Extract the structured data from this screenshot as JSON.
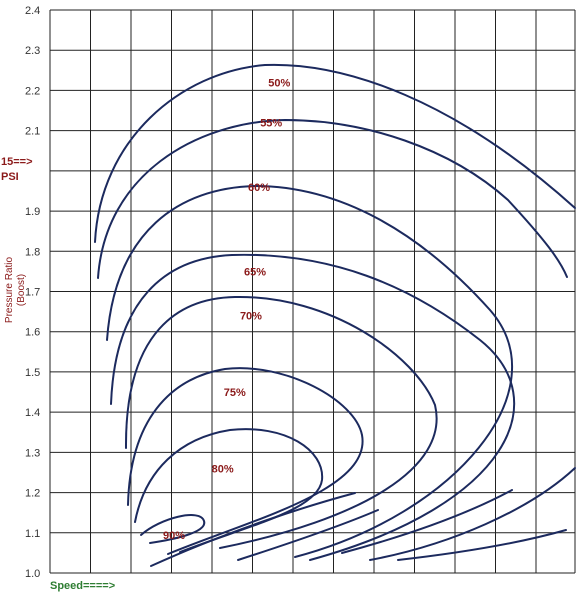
{
  "chart_data": {
    "type": "line",
    "title": "",
    "xlabel": "Speed====>",
    "ylabel": "Pressure Ratio",
    "ylabel_sub": "(Boost)",
    "annotation": {
      "line1": "15==>",
      "line2": "PSI",
      "at_y": 2.0
    },
    "ylim": [
      1.0,
      2.4
    ],
    "y_ticks": [
      "1.0",
      "1.1",
      "1.2",
      "1.3",
      "1.4",
      "1.5",
      "1.6",
      "1.7",
      "1.8",
      "1.9",
      "2.1",
      "2.2",
      "2.3",
      "2.4"
    ],
    "grid": true,
    "efficiency_islands": [
      {
        "label": "50%",
        "label_pos": [
          8.6,
          2.22
        ]
      },
      {
        "label": "55%",
        "label_pos": [
          8.4,
          2.12
        ]
      },
      {
        "label": "60%",
        "label_pos": [
          8.1,
          1.96
        ]
      },
      {
        "label": "65%",
        "label_pos": [
          8.0,
          1.75
        ]
      },
      {
        "label": "70%",
        "label_pos": [
          7.9,
          1.64
        ]
      },
      {
        "label": "75%",
        "label_pos": [
          7.5,
          1.45
        ]
      },
      {
        "label": "80%",
        "label_pos": [
          7.2,
          1.26
        ]
      },
      {
        "label": "90%",
        "label_pos": [
          6.0,
          1.095
        ]
      }
    ]
  },
  "colors": {
    "grid": "#222222",
    "curve": "#1c2a5e",
    "labels": "#8b1a1a",
    "xlabel": "#2e7d32"
  }
}
